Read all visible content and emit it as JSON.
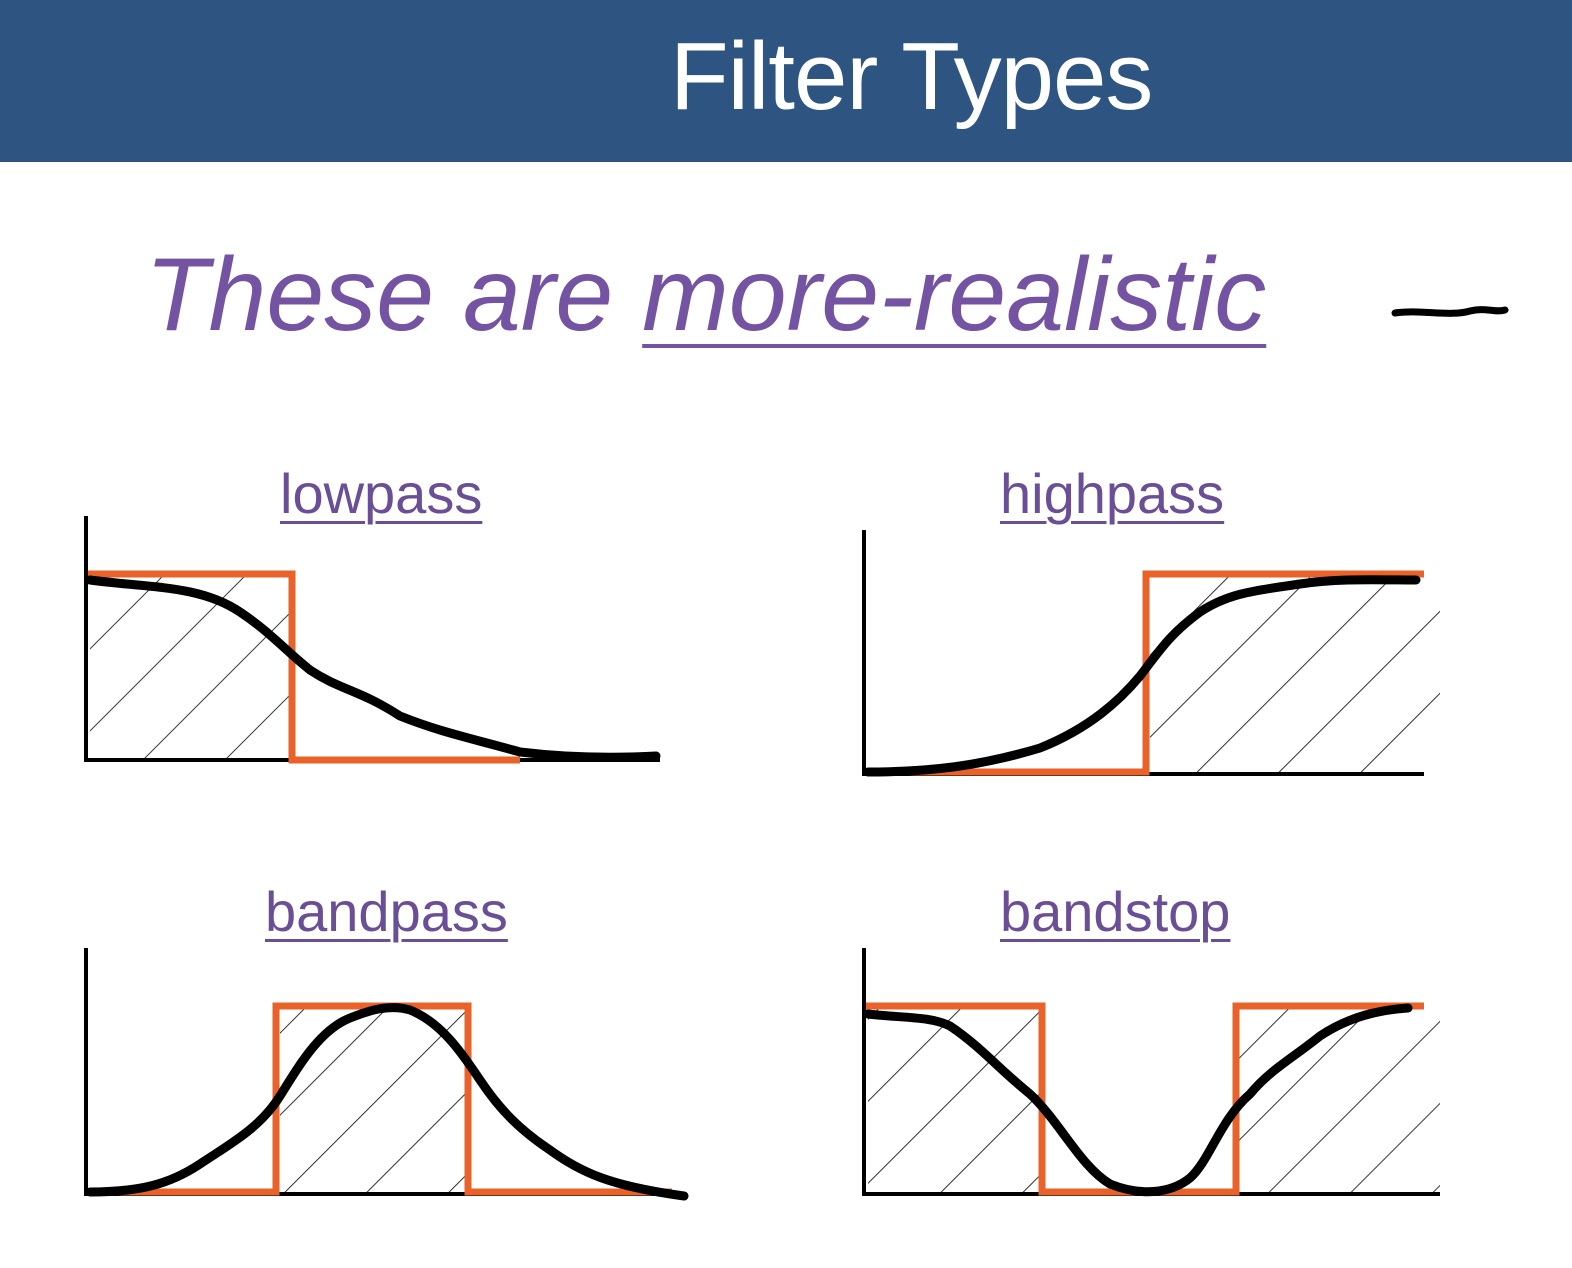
{
  "header": {
    "title": "Filter Types",
    "background": "#2e5581"
  },
  "subtitle": {
    "prefix": "These are ",
    "emphasis": "more-realistic",
    "color": "#7553a3"
  },
  "colors": {
    "ideal": "#e8622a",
    "realistic": "#000000",
    "label": "#6a4e96"
  },
  "filters": [
    {
      "id": "lowpass",
      "label": "lowpass",
      "response": "lowpass"
    },
    {
      "id": "highpass",
      "label": "highpass",
      "response": "highpass"
    },
    {
      "id": "bandpass",
      "label": "bandpass",
      "response": "bandpass"
    },
    {
      "id": "bandstop",
      "label": "bandstop",
      "response": "bandstop"
    }
  ]
}
